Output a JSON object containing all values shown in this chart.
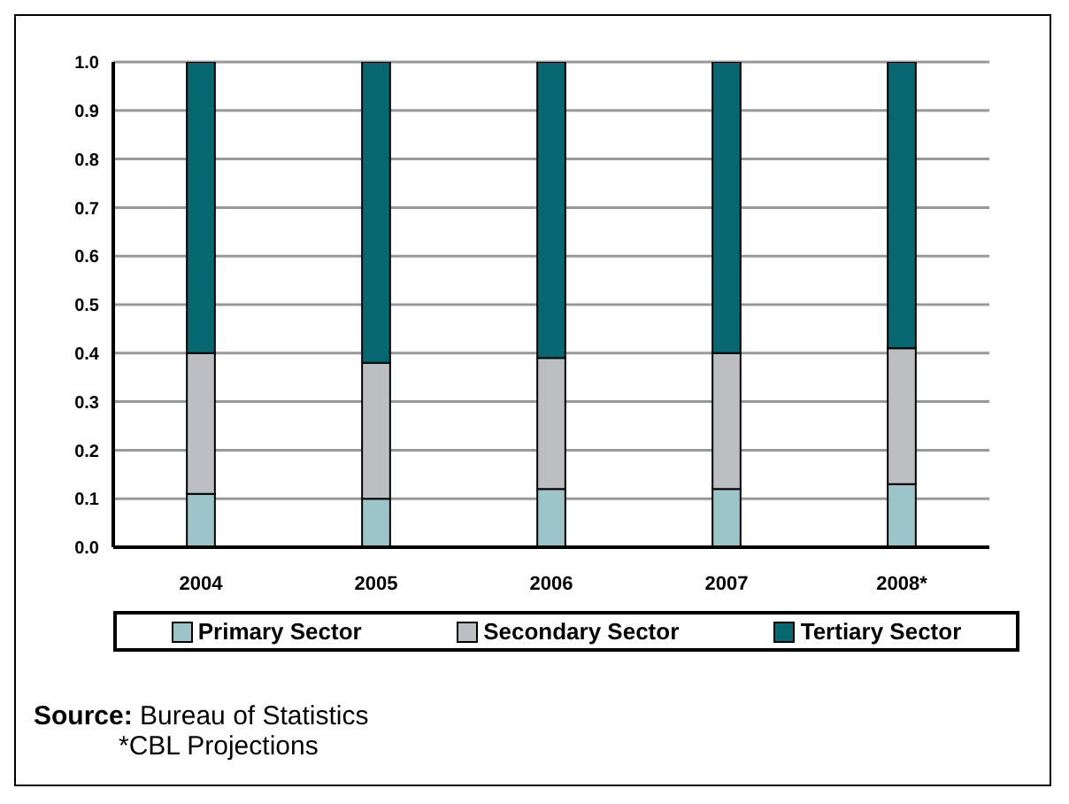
{
  "chart_data": {
    "type": "bar",
    "stacked": true,
    "categories": [
      "2004",
      "2005",
      "2006",
      "2007",
      "2008*"
    ],
    "series": [
      {
        "name": "Primary Sector",
        "color": "#9cc5c9",
        "values": [
          0.11,
          0.1,
          0.12,
          0.12,
          0.13
        ]
      },
      {
        "name": "Secondary Sector",
        "color": "#bdbec2",
        "values": [
          0.29,
          0.28,
          0.27,
          0.28,
          0.28
        ]
      },
      {
        "name": "Tertiary Sector",
        "color": "#086872",
        "values": [
          0.6,
          0.62,
          0.61,
          0.6,
          0.59
        ]
      }
    ],
    "ylim": [
      0,
      1
    ],
    "yticks": [
      {
        "value": 0,
        "label": "0.0"
      },
      {
        "value": 0.1,
        "label": "0.1"
      },
      {
        "value": 0.2,
        "label": "0.2"
      },
      {
        "value": 0.3,
        "label": "0.3"
      },
      {
        "value": 0.4,
        "label": "0.4"
      },
      {
        "value": 0.5,
        "label": "0.5"
      },
      {
        "value": 0.6,
        "label": "0.6"
      },
      {
        "value": 0.7,
        "label": "0.7"
      },
      {
        "value": 0.8,
        "label": "0.8"
      },
      {
        "value": 0.9,
        "label": "0.9"
      },
      {
        "value": 1,
        "label": "1.0"
      }
    ],
    "grid": "y",
    "legend": "bottom",
    "annotations": [
      "Source: Bureau of Statistics",
      "*CBL Projections"
    ]
  }
}
